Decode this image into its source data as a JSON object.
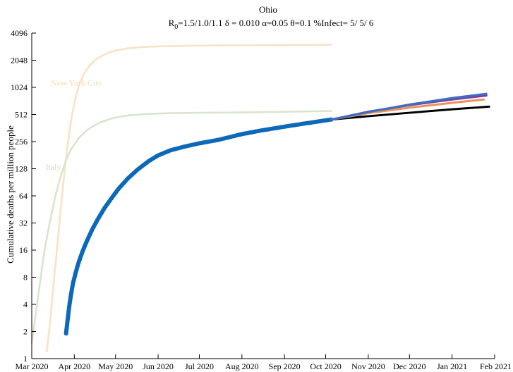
{
  "chart_data": {
    "type": "line",
    "title": "Ohio",
    "subtitle": {
      "r0_label": "R",
      "r0_sub": "0",
      "rest": "=1.5/1.0/1.1  δ = 0.010  α=0.05  θ=0.1  %Infect= 5/ 5/ 6"
    },
    "ylabel": "Cumulative deaths per million people",
    "xlabel": "",
    "y_scale": "log2",
    "ylim": [
      1,
      4096
    ],
    "xlim": [
      "2020-03-01",
      "2021-02-01"
    ],
    "y_ticks": [
      1,
      2,
      4,
      8,
      16,
      32,
      64,
      128,
      256,
      512,
      1024,
      2048,
      4096
    ],
    "x_ticks": [
      {
        "date": "2020-03-01",
        "label": "Mar 2020"
      },
      {
        "date": "2020-04-01",
        "label": "Apr 2020"
      },
      {
        "date": "2020-05-01",
        "label": "May 2020"
      },
      {
        "date": "2020-06-01",
        "label": "Jun 2020"
      },
      {
        "date": "2020-07-01",
        "label": "Jul 2020"
      },
      {
        "date": "2020-08-01",
        "label": "Aug 2020"
      },
      {
        "date": "2020-09-01",
        "label": "Sep 2020"
      },
      {
        "date": "2020-10-01",
        "label": "Oct 2020"
      },
      {
        "date": "2020-11-01",
        "label": "Nov 2020"
      },
      {
        "date": "2020-12-01",
        "label": "Dec 2020"
      },
      {
        "date": "2021-01-01",
        "label": "Jan 2021"
      },
      {
        "date": "2021-02-01",
        "label": "Feb 2021"
      }
    ],
    "grid": false,
    "annotations": [
      {
        "text": "New York City",
        "date": "2020-03-15",
        "y": 1070,
        "color": "#f7dcb4"
      },
      {
        "text": "Italy",
        "date": "2020-03-11",
        "y": 125,
        "color": "#cfe0bf"
      }
    ],
    "series": [
      {
        "key": "nyc",
        "color": "#f9e2c6",
        "style": "line",
        "x": [
          "2020-03-12",
          "2020-03-15",
          "2020-03-18",
          "2020-03-21",
          "2020-03-24",
          "2020-03-27",
          "2020-03-30",
          "2020-04-02",
          "2020-04-05",
          "2020-04-08",
          "2020-04-12",
          "2020-04-16",
          "2020-04-20",
          "2020-04-25",
          "2020-05-01",
          "2020-05-10",
          "2020-05-20",
          "2020-06-01",
          "2020-06-20",
          "2020-07-15",
          "2020-08-15",
          "2020-09-15",
          "2020-10-05"
        ],
        "y": [
          1.2,
          3.2,
          10,
          30,
          90,
          230,
          480,
          800,
          1150,
          1450,
          1780,
          2050,
          2250,
          2450,
          2620,
          2780,
          2860,
          2920,
          2960,
          2990,
          3010,
          3030,
          3040
        ]
      },
      {
        "key": "italy",
        "color": "#d8e6cc",
        "style": "line",
        "x": [
          "2020-03-01",
          "2020-03-04",
          "2020-03-07",
          "2020-03-10",
          "2020-03-14",
          "2020-03-18",
          "2020-03-22",
          "2020-03-26",
          "2020-03-30",
          "2020-04-05",
          "2020-04-12",
          "2020-04-20",
          "2020-04-30",
          "2020-05-10",
          "2020-05-25",
          "2020-06-10",
          "2020-07-01",
          "2020-08-01",
          "2020-09-01",
          "2020-10-05"
        ],
        "y": [
          1.5,
          3.2,
          7,
          15,
          32,
          62,
          105,
          160,
          215,
          290,
          360,
          420,
          470,
          500,
          520,
          530,
          535,
          540,
          548,
          560
        ]
      },
      {
        "key": "ohio-observed",
        "color": "#0c68b8",
        "style": "dots",
        "x": [
          "2020-03-26",
          "2020-03-27",
          "2020-03-28",
          "2020-03-29",
          "2020-03-30",
          "2020-03-31",
          "2020-04-02",
          "2020-04-04",
          "2020-04-07",
          "2020-04-10",
          "2020-04-14",
          "2020-04-18",
          "2020-04-23",
          "2020-04-28",
          "2020-05-03",
          "2020-05-10",
          "2020-05-17",
          "2020-05-25",
          "2020-06-01",
          "2020-06-10",
          "2020-06-20",
          "2020-07-01",
          "2020-07-15",
          "2020-08-01",
          "2020-08-15",
          "2020-09-01",
          "2020-09-15",
          "2020-10-05"
        ],
        "y": [
          1.9,
          2.6,
          3.5,
          4.5,
          5.6,
          6.8,
          9,
          11.5,
          15.5,
          20,
          27,
          35,
          47,
          60,
          76,
          100,
          125,
          155,
          180,
          205,
          225,
          245,
          268,
          310,
          340,
          375,
          405,
          450
        ]
      },
      {
        "key": "projection-black",
        "color": "#000000",
        "style": "line",
        "x": [
          "2020-10-05",
          "2020-11-01",
          "2020-12-01",
          "2021-01-01",
          "2021-01-28"
        ],
        "y": [
          450,
          490,
          535,
          585,
          625
        ]
      },
      {
        "key": "projection-orange",
        "color": "#e8925a",
        "style": "line",
        "x": [
          "2020-10-05",
          "2020-11-01",
          "2020-12-01",
          "2021-01-01",
          "2021-01-24"
        ],
        "y": [
          450,
          530,
          610,
          690,
          750
        ]
      },
      {
        "key": "projection-purple",
        "color": "#7e3e9c",
        "style": "line",
        "x": [
          "2020-10-05",
          "2020-11-01",
          "2020-12-01",
          "2021-01-01",
          "2021-01-26"
        ],
        "y": [
          450,
          550,
          650,
          750,
          830
        ]
      },
      {
        "key": "projection-blue",
        "color": "#3b6fc4",
        "style": "line",
        "x": [
          "2020-10-05",
          "2020-11-01",
          "2020-12-01",
          "2021-01-01",
          "2021-01-26"
        ],
        "y": [
          450,
          545,
          660,
          780,
          870
        ]
      }
    ]
  }
}
